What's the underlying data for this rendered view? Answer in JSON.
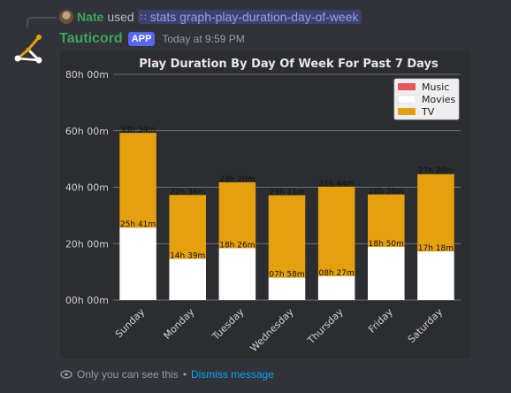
{
  "reply": {
    "user": "Nate",
    "used_text": "used",
    "command": "stats graph-play-duration-day-of-week"
  },
  "message": {
    "author": "Tauticord",
    "badge": "APP",
    "timestamp": "Today at 9:59 PM"
  },
  "footer": {
    "notice": "Only you can see this",
    "separator": "•",
    "dismiss": "Dismiss message"
  },
  "colors": {
    "music": "#e8575c",
    "movies": "#ffffff",
    "tv": "#e5a00d",
    "author": "#3ba55c",
    "badge": "#5865f2"
  },
  "chart_data": {
    "type": "bar",
    "stacked": true,
    "title": "Play Duration By Day Of Week For Past 7 Days",
    "categories": [
      "Sunday",
      "Monday",
      "Tuesday",
      "Wednesday",
      "Thursday",
      "Friday",
      "Saturday"
    ],
    "series": [
      {
        "name": "Music",
        "values": [
          0,
          0,
          0,
          0,
          0,
          0,
          0
        ],
        "color": "#e8575c"
      },
      {
        "name": "Movies",
        "values": [
          25.68,
          14.65,
          18.43,
          7.97,
          8.45,
          18.83,
          17.3
        ],
        "labels": [
          "25h 41m",
          "14h 39m",
          "18h 26m",
          "07h 58m",
          "08h 27m",
          "18h 50m",
          "17h 18m"
        ],
        "color": "#ffffff"
      },
      {
        "name": "TV",
        "values": [
          33.57,
          22.6,
          23.33,
          29.18,
          31.73,
          18.6,
          27.33
        ],
        "labels": [
          "33h 34m",
          "22h 36m",
          "23h 20m",
          "29h 11m",
          "31h 44m",
          "18h 36m",
          "27h 20m"
        ],
        "color": "#e5a00d"
      }
    ],
    "yticks": [
      "00h 00m",
      "20h 00m",
      "40h 00m",
      "60h 00m",
      "80h 00m"
    ],
    "ylim": [
      0,
      80
    ],
    "grid": true,
    "legend": "top-right"
  }
}
